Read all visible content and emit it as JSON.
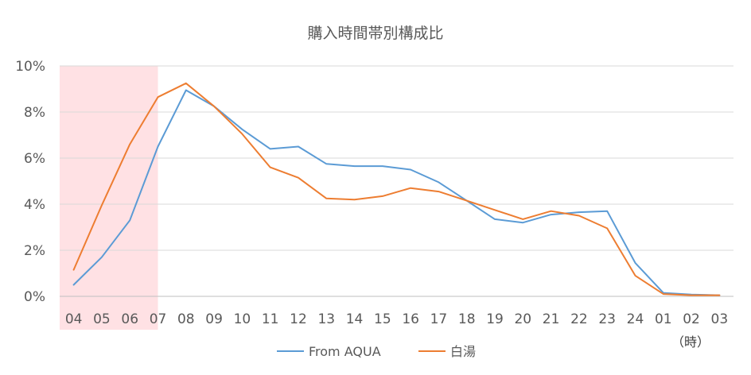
{
  "chart_data": {
    "type": "line",
    "title": "購入時間帯別構成比",
    "xlabel": "",
    "ylabel": "",
    "x_unit_label": "（時）",
    "categories": [
      "04",
      "05",
      "06",
      "07",
      "08",
      "09",
      "10",
      "11",
      "12",
      "13",
      "14",
      "15",
      "16",
      "17",
      "18",
      "19",
      "20",
      "21",
      "22",
      "23",
      "24",
      "01",
      "02",
      "03"
    ],
    "ylim": [
      0,
      10
    ],
    "yticks": [
      "0%",
      "2%",
      "4%",
      "6%",
      "8%",
      "10%"
    ],
    "grid": true,
    "legend_position": "bottom",
    "highlight": {
      "from": "04",
      "to": "07",
      "color": "#ffe1e4"
    },
    "series": [
      {
        "name": "From AQUA",
        "color": "#5b9bd5",
        "values": [
          0.5,
          1.7,
          3.3,
          6.5,
          8.95,
          8.25,
          7.25,
          6.4,
          6.5,
          5.75,
          5.65,
          5.65,
          5.5,
          4.95,
          4.15,
          3.35,
          3.2,
          3.55,
          3.65,
          3.7,
          1.45,
          0.15,
          0.08,
          0.05
        ]
      },
      {
        "name": "白湯",
        "color": "#ed7d31",
        "values": [
          1.15,
          3.95,
          6.6,
          8.65,
          9.25,
          8.25,
          7.05,
          5.6,
          5.15,
          4.25,
          4.2,
          4.35,
          4.7,
          4.55,
          4.15,
          3.75,
          3.35,
          3.7,
          3.5,
          2.95,
          0.9,
          0.1,
          0.05,
          0.05
        ]
      }
    ]
  }
}
